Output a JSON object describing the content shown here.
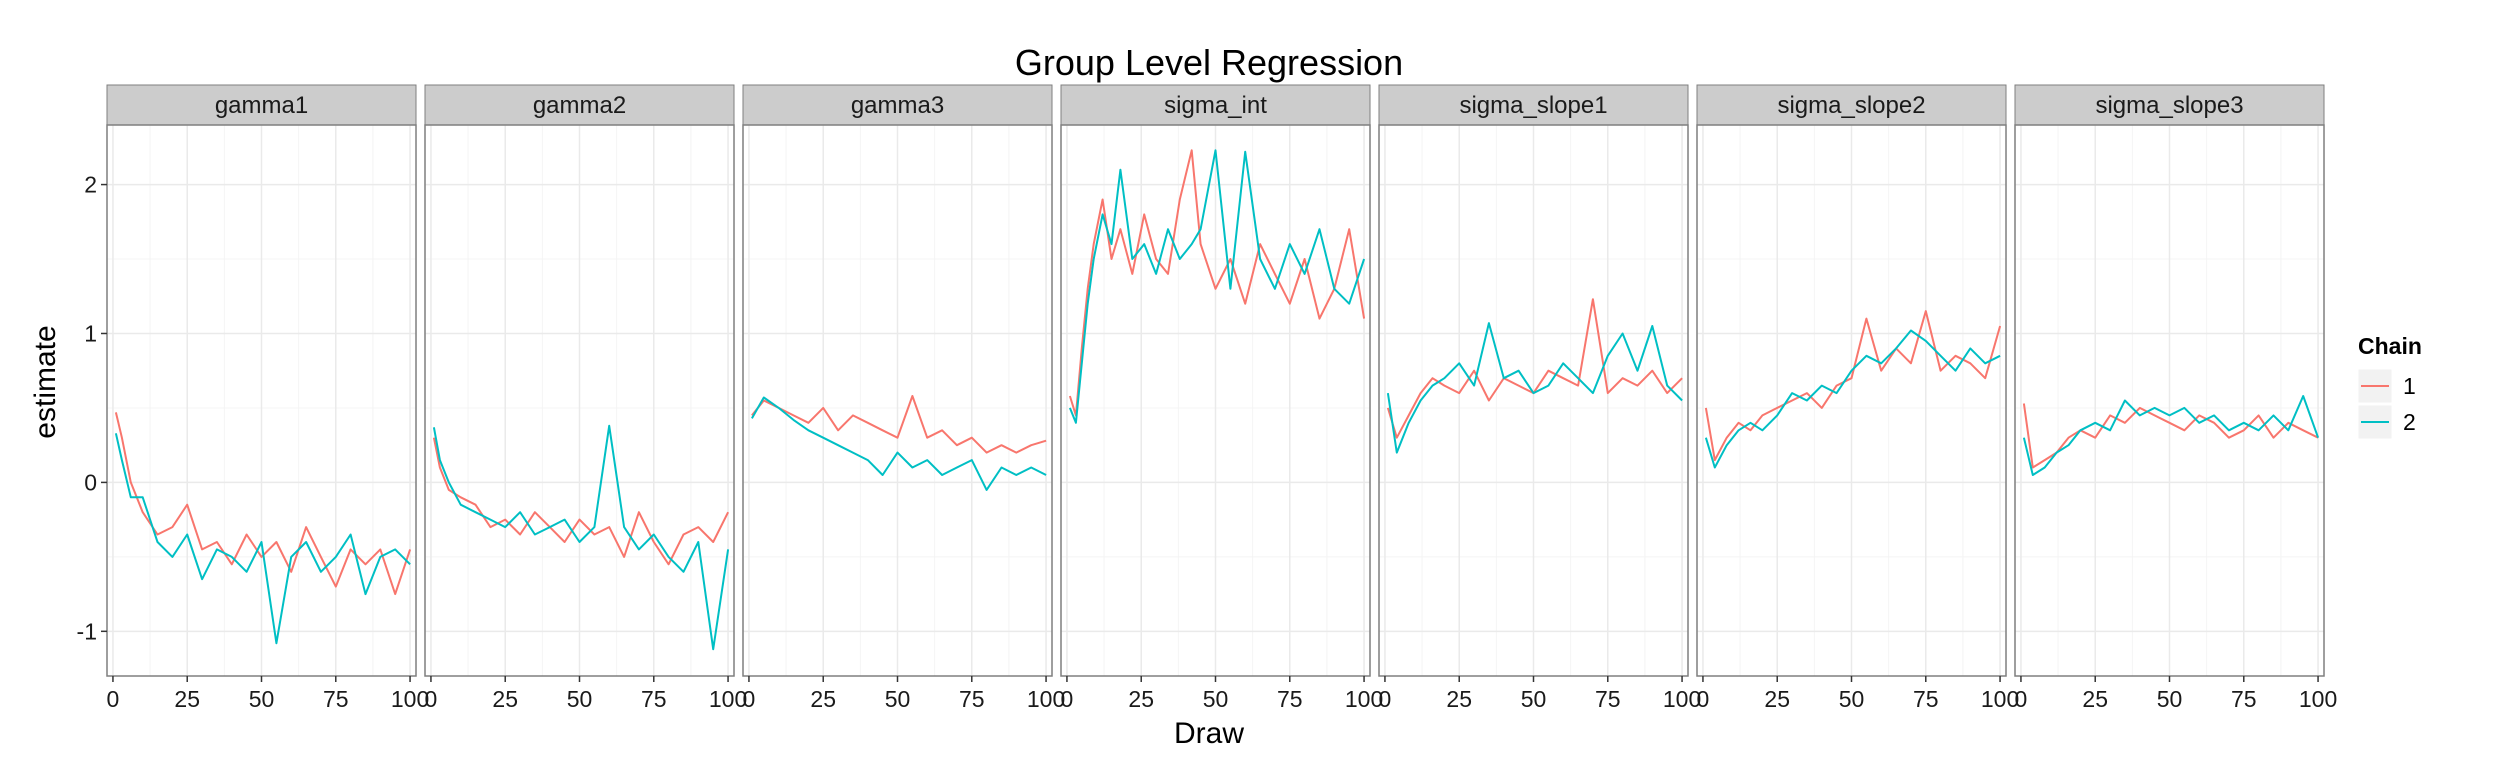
{
  "chart_data": {
    "type": "line",
    "title": "Group Level Regression",
    "xlabel": "Draw",
    "ylabel": "estimate",
    "xlim": [
      -2,
      102
    ],
    "ylim": [
      -1.3,
      2.4
    ],
    "x_ticks": [
      0,
      25,
      50,
      75,
      100
    ],
    "y_ticks": [
      -1,
      0,
      1,
      2
    ],
    "grid": true,
    "legend": {
      "title": "Chain",
      "position": "right",
      "entries": [
        "1",
        "2"
      ]
    },
    "colors": {
      "1": "#F8766D",
      "2": "#00BFC4",
      "strip_bg": "#cccccc",
      "panel_border": "#7f7f7f",
      "grid_major": "#eaeaea",
      "grid_minor": "#f4f4f4"
    },
    "facets": [
      {
        "name": "gamma1",
        "series": [
          {
            "name": "1",
            "x": [
              1,
              3,
              6,
              10,
              15,
              20,
              25,
              30,
              35,
              40,
              45,
              50,
              55,
              60,
              65,
              70,
              75,
              80,
              85,
              90,
              95,
              100
            ],
            "y": [
              0.47,
              0.3,
              0.0,
              -0.2,
              -0.35,
              -0.3,
              -0.15,
              -0.45,
              -0.4,
              -0.55,
              -0.35,
              -0.5,
              -0.4,
              -0.6,
              -0.3,
              -0.5,
              -0.7,
              -0.45,
              -0.55,
              -0.45,
              -0.75,
              -0.45
            ]
          },
          {
            "name": "2",
            "x": [
              1,
              3,
              6,
              10,
              15,
              20,
              25,
              30,
              35,
              40,
              45,
              50,
              55,
              60,
              65,
              70,
              75,
              80,
              85,
              90,
              95,
              100
            ],
            "y": [
              0.33,
              0.15,
              -0.1,
              -0.1,
              -0.4,
              -0.5,
              -0.35,
              -0.65,
              -0.45,
              -0.5,
              -0.6,
              -0.4,
              -1.08,
              -0.5,
              -0.4,
              -0.6,
              -0.5,
              -0.35,
              -0.75,
              -0.5,
              -0.45,
              -0.55
            ]
          }
        ]
      },
      {
        "name": "gamma2",
        "series": [
          {
            "name": "1",
            "x": [
              1,
              3,
              6,
              10,
              15,
              20,
              25,
              30,
              35,
              40,
              45,
              50,
              55,
              60,
              65,
              70,
              75,
              80,
              85,
              90,
              95,
              100
            ],
            "y": [
              0.3,
              0.1,
              -0.05,
              -0.1,
              -0.15,
              -0.3,
              -0.25,
              -0.35,
              -0.2,
              -0.3,
              -0.4,
              -0.25,
              -0.35,
              -0.3,
              -0.5,
              -0.2,
              -0.4,
              -0.55,
              -0.35,
              -0.3,
              -0.4,
              -0.2
            ]
          },
          {
            "name": "2",
            "x": [
              1,
              3,
              6,
              10,
              15,
              20,
              25,
              30,
              35,
              40,
              45,
              50,
              55,
              60,
              65,
              70,
              75,
              80,
              85,
              90,
              95,
              100
            ],
            "y": [
              0.37,
              0.15,
              0.0,
              -0.15,
              -0.2,
              -0.25,
              -0.3,
              -0.2,
              -0.35,
              -0.3,
              -0.25,
              -0.4,
              -0.3,
              0.38,
              -0.3,
              -0.45,
              -0.35,
              -0.5,
              -0.6,
              -0.4,
              -1.12,
              -0.45
            ]
          }
        ]
      },
      {
        "name": "gamma3",
        "series": [
          {
            "name": "1",
            "x": [
              1,
              5,
              10,
              15,
              20,
              25,
              30,
              35,
              40,
              45,
              50,
              55,
              60,
              65,
              70,
              75,
              80,
              85,
              90,
              95,
              100
            ],
            "y": [
              0.45,
              0.55,
              0.5,
              0.45,
              0.4,
              0.5,
              0.35,
              0.45,
              0.4,
              0.35,
              0.3,
              0.58,
              0.3,
              0.35,
              0.25,
              0.3,
              0.2,
              0.25,
              0.2,
              0.25,
              0.28
            ]
          },
          {
            "name": "2",
            "x": [
              1,
              5,
              10,
              15,
              20,
              25,
              30,
              35,
              40,
              45,
              50,
              55,
              60,
              65,
              70,
              75,
              80,
              85,
              90,
              95,
              100
            ],
            "y": [
              0.43,
              0.57,
              0.5,
              0.42,
              0.35,
              0.3,
              0.25,
              0.2,
              0.15,
              0.05,
              0.2,
              0.1,
              0.15,
              0.05,
              0.1,
              0.15,
              -0.05,
              0.1,
              0.05,
              0.1,
              0.05
            ]
          }
        ]
      },
      {
        "name": "sigma_int",
        "series": [
          {
            "name": "1",
            "x": [
              1,
              3,
              5,
              7,
              9,
              12,
              15,
              18,
              22,
              26,
              30,
              34,
              38,
              42,
              45,
              50,
              55,
              60,
              65,
              70,
              75,
              80,
              85,
              90,
              95,
              100
            ],
            "y": [
              0.58,
              0.45,
              0.9,
              1.3,
              1.6,
              1.9,
              1.5,
              1.7,
              1.4,
              1.8,
              1.5,
              1.4,
              1.9,
              2.23,
              1.6,
              1.3,
              1.5,
              1.2,
              1.6,
              1.4,
              1.2,
              1.5,
              1.1,
              1.3,
              1.7,
              1.1
            ]
          },
          {
            "name": "2",
            "x": [
              1,
              3,
              5,
              7,
              9,
              12,
              15,
              18,
              22,
              26,
              30,
              34,
              38,
              42,
              45,
              50,
              55,
              60,
              65,
              70,
              75,
              80,
              85,
              90,
              95,
              100
            ],
            "y": [
              0.5,
              0.4,
              0.8,
              1.2,
              1.5,
              1.8,
              1.6,
              2.1,
              1.5,
              1.6,
              1.4,
              1.7,
              1.5,
              1.6,
              1.7,
              2.23,
              1.3,
              2.22,
              1.5,
              1.3,
              1.6,
              1.4,
              1.7,
              1.3,
              1.2,
              1.5
            ]
          }
        ]
      },
      {
        "name": "sigma_slope1",
        "series": [
          {
            "name": "1",
            "x": [
              1,
              4,
              8,
              12,
              16,
              20,
              25,
              30,
              35,
              40,
              45,
              50,
              55,
              60,
              65,
              70,
              75,
              80,
              85,
              90,
              95,
              100
            ],
            "y": [
              0.5,
              0.3,
              0.45,
              0.6,
              0.7,
              0.65,
              0.6,
              0.75,
              0.55,
              0.7,
              0.65,
              0.6,
              0.75,
              0.7,
              0.65,
              1.23,
              0.6,
              0.7,
              0.65,
              0.75,
              0.6,
              0.7
            ]
          },
          {
            "name": "2",
            "x": [
              1,
              4,
              8,
              12,
              16,
              20,
              25,
              30,
              35,
              40,
              45,
              50,
              55,
              60,
              65,
              70,
              75,
              80,
              85,
              90,
              95,
              100
            ],
            "y": [
              0.6,
              0.2,
              0.4,
              0.55,
              0.65,
              0.7,
              0.8,
              0.65,
              1.07,
              0.7,
              0.75,
              0.6,
              0.65,
              0.8,
              0.7,
              0.6,
              0.85,
              1.0,
              0.75,
              1.05,
              0.65,
              0.55
            ]
          }
        ]
      },
      {
        "name": "sigma_slope2",
        "series": [
          {
            "name": "1",
            "x": [
              1,
              4,
              8,
              12,
              16,
              20,
              25,
              30,
              35,
              40,
              45,
              50,
              55,
              60,
              65,
              70,
              75,
              80,
              85,
              90,
              95,
              100
            ],
            "y": [
              0.5,
              0.15,
              0.3,
              0.4,
              0.35,
              0.45,
              0.5,
              0.55,
              0.6,
              0.5,
              0.65,
              0.7,
              1.1,
              0.75,
              0.9,
              0.8,
              1.15,
              0.75,
              0.85,
              0.8,
              0.7,
              1.05
            ]
          },
          {
            "name": "2",
            "x": [
              1,
              4,
              8,
              12,
              16,
              20,
              25,
              30,
              35,
              40,
              45,
              50,
              55,
              60,
              65,
              70,
              75,
              80,
              85,
              90,
              95,
              100
            ],
            "y": [
              0.3,
              0.1,
              0.25,
              0.35,
              0.4,
              0.35,
              0.45,
              0.6,
              0.55,
              0.65,
              0.6,
              0.75,
              0.85,
              0.8,
              0.9,
              1.02,
              0.95,
              0.85,
              0.75,
              0.9,
              0.8,
              0.85
            ]
          }
        ]
      },
      {
        "name": "sigma_slope3",
        "series": [
          {
            "name": "1",
            "x": [
              1,
              4,
              8,
              12,
              16,
              20,
              25,
              30,
              35,
              40,
              45,
              50,
              55,
              60,
              65,
              70,
              75,
              80,
              85,
              90,
              95,
              100
            ],
            "y": [
              0.53,
              0.1,
              0.15,
              0.2,
              0.3,
              0.35,
              0.3,
              0.45,
              0.4,
              0.5,
              0.45,
              0.4,
              0.35,
              0.45,
              0.4,
              0.3,
              0.35,
              0.45,
              0.3,
              0.4,
              0.35,
              0.3
            ]
          },
          {
            "name": "2",
            "x": [
              1,
              4,
              8,
              12,
              16,
              20,
              25,
              30,
              35,
              40,
              45,
              50,
              55,
              60,
              65,
              70,
              75,
              80,
              85,
              90,
              95,
              100
            ],
            "y": [
              0.3,
              0.05,
              0.1,
              0.2,
              0.25,
              0.35,
              0.4,
              0.35,
              0.55,
              0.45,
              0.5,
              0.45,
              0.5,
              0.4,
              0.45,
              0.35,
              0.4,
              0.35,
              0.45,
              0.35,
              0.58,
              0.3
            ]
          }
        ]
      }
    ]
  }
}
